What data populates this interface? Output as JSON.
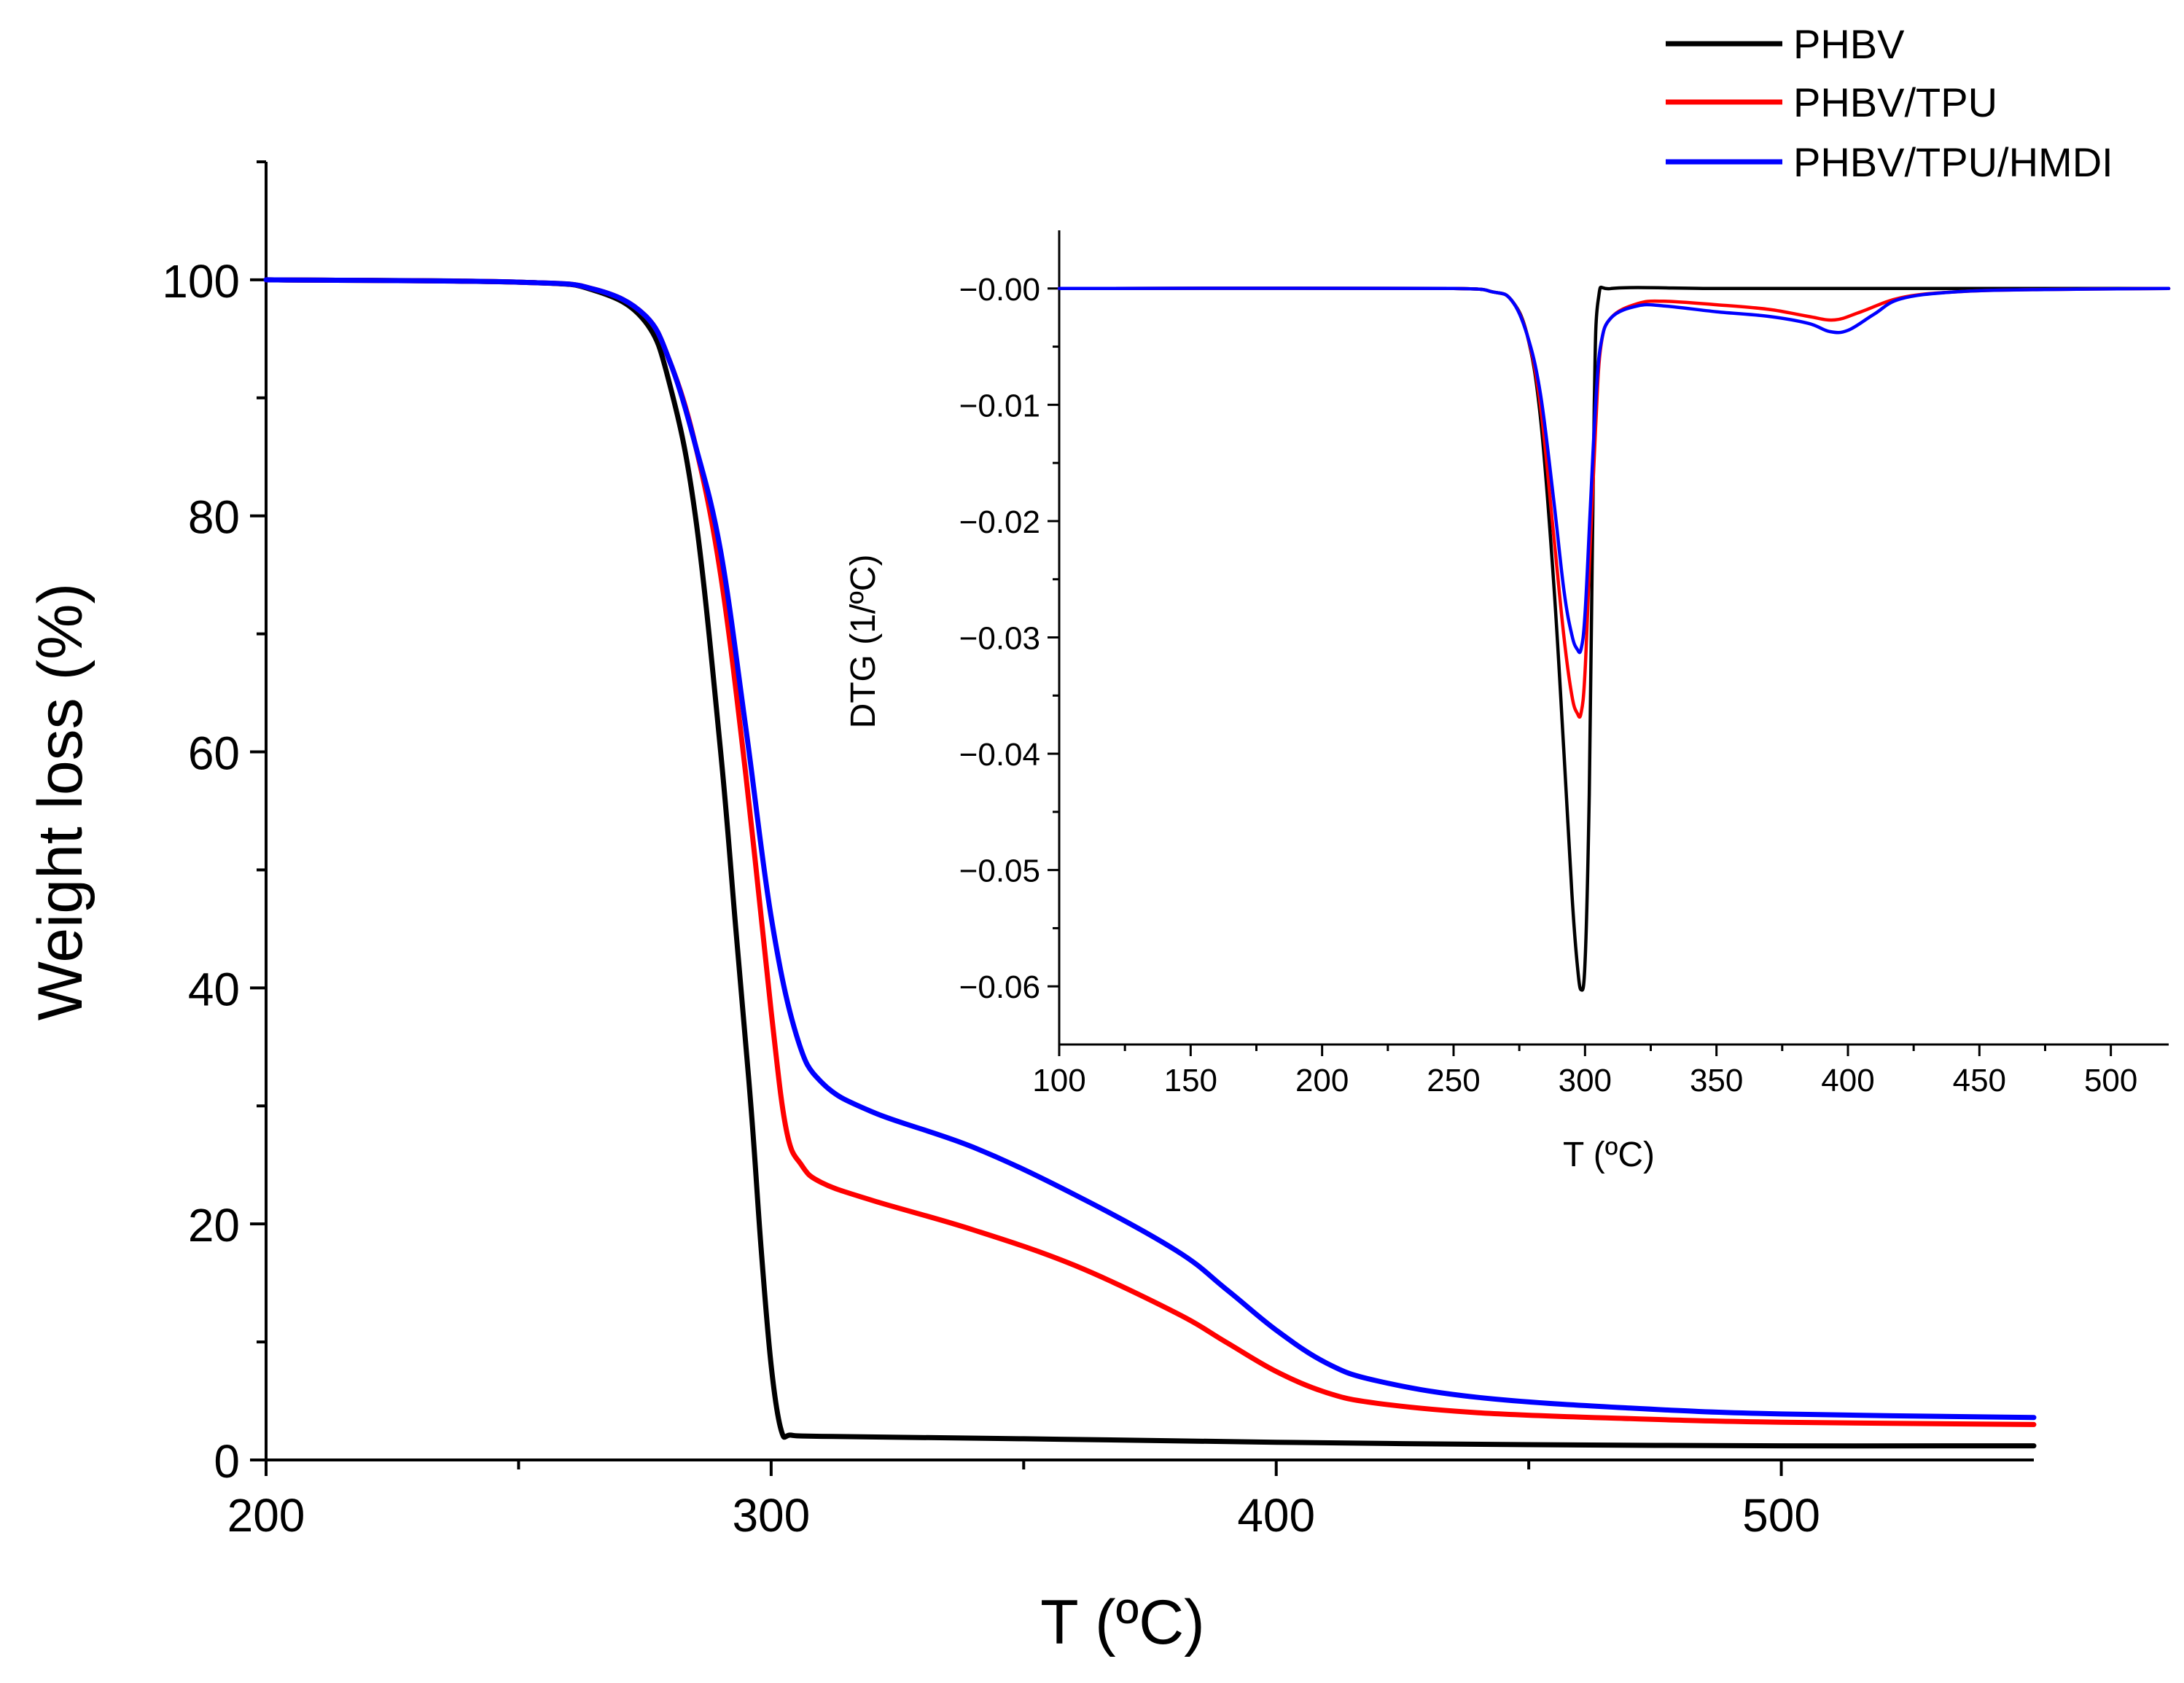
{
  "chart_data": [
    {
      "type": "line",
      "name": "tga-main",
      "xlabel": "T (ºC)",
      "ylabel": "Weight loss (%)",
      "xlim": [
        200,
        550
      ],
      "ylim": [
        0,
        110
      ],
      "xticks": [
        200,
        300,
        400,
        500
      ],
      "xminor": [
        250,
        350,
        450
      ],
      "yticks": [
        0,
        20,
        40,
        60,
        80,
        100
      ],
      "yminor": [
        10,
        30,
        50,
        70,
        90,
        110
      ],
      "series": [
        {
          "name": "PHBV",
          "color": "#000000",
          "x": [
            200,
            250,
            265,
            275,
            280,
            285,
            290,
            293,
            296,
            298,
            300,
            302,
            304,
            310,
            350,
            400,
            450,
            500,
            550
          ],
          "y": [
            100,
            99.8,
            99.1,
            96.5,
            91,
            80,
            60,
            45,
            30,
            18,
            8,
            2.5,
            2.1,
            2.0,
            1.8,
            1.5,
            1.3,
            1.2,
            1.2
          ]
        },
        {
          "name": "PHBV/TPU",
          "color": "#ff0000",
          "x": [
            200,
            250,
            265,
            275,
            280,
            285,
            290,
            295,
            300,
            303,
            306,
            310,
            320,
            340,
            360,
            380,
            390,
            400,
            410,
            420,
            440,
            470,
            500,
            550
          ],
          "y": [
            100,
            99.8,
            99.2,
            97,
            93,
            86,
            75,
            58,
            38,
            28,
            25,
            23.5,
            22,
            19.5,
            16.5,
            12.5,
            10,
            7.5,
            5.7,
            4.8,
            4.0,
            3.5,
            3.2,
            3.0
          ]
        },
        {
          "name": "PHBV/TPU/HMDI",
          "color": "#0000ff",
          "x": [
            200,
            250,
            265,
            275,
            280,
            285,
            290,
            295,
            300,
            305,
            310,
            320,
            340,
            360,
            380,
            390,
            400,
            410,
            420,
            440,
            470,
            500,
            550
          ],
          "y": [
            100,
            99.8,
            99.2,
            97,
            93,
            86,
            77,
            62,
            46,
            36,
            32,
            29.5,
            26.5,
            22.5,
            17.8,
            14.5,
            11,
            8.2,
            6.7,
            5.3,
            4.4,
            3.9,
            3.6
          ]
        }
      ]
    },
    {
      "type": "line",
      "name": "dtg-inset",
      "xlabel": "T (ºC)",
      "ylabel": "DTG (1/ºC)",
      "xlim": [
        100,
        522
      ],
      "ylim": [
        -0.065,
        0.005
      ],
      "xticks": [
        100,
        150,
        200,
        250,
        300,
        350,
        400,
        450,
        500
      ],
      "xminor": [
        125,
        175,
        225,
        275,
        325,
        375,
        425,
        475
      ],
      "yticks": [
        0.0,
        -0.01,
        -0.02,
        -0.03,
        -0.04,
        -0.05,
        -0.06
      ],
      "ytick_labels": [
        "-0.00",
        "-0.01",
        "-0.02",
        "-0.03",
        "-0.04",
        "-0.05",
        "-0.06"
      ],
      "yminor": [
        -0.005,
        -0.015,
        -0.025,
        -0.035,
        -0.045,
        -0.055
      ],
      "series": [
        {
          "name": "PHBV",
          "color": "#000000",
          "x": [
            100,
            250,
            265,
            272,
            278,
            283,
            288,
            292,
            295,
            297,
            298.5,
            300,
            301.5,
            302.5,
            303.5,
            305,
            310,
            350,
            400,
            450,
            522
          ],
          "y": [
            0,
            0,
            -0.0003,
            -0.001,
            -0.004,
            -0.011,
            -0.025,
            -0.04,
            -0.052,
            -0.058,
            -0.0603,
            -0.058,
            -0.045,
            -0.028,
            -0.01,
            -0.001,
            0,
            0,
            0,
            0,
            0
          ]
        },
        {
          "name": "PHBV/TPU",
          "color": "#ff0000",
          "x": [
            100,
            250,
            265,
            272,
            278,
            283,
            288,
            292,
            295,
            297,
            298.5,
            300,
            302,
            304,
            306,
            310,
            320,
            330,
            350,
            370,
            385,
            395,
            405,
            420,
            440,
            470,
            522
          ],
          "y": [
            0,
            0,
            -0.0003,
            -0.001,
            -0.004,
            -0.01,
            -0.021,
            -0.03,
            -0.035,
            -0.0365,
            -0.0365,
            -0.033,
            -0.022,
            -0.012,
            -0.005,
            -0.0025,
            -0.0013,
            -0.0011,
            -0.0014,
            -0.0018,
            -0.0024,
            -0.0027,
            -0.002,
            -0.0008,
            -0.0003,
            -0.0001,
            0
          ]
        },
        {
          "name": "PHBV/TPU/HMDI",
          "color": "#0000ff",
          "x": [
            100,
            250,
            265,
            272,
            278,
            283,
            288,
            292,
            295,
            297,
            298.5,
            300,
            302,
            304,
            306,
            310,
            320,
            330,
            350,
            370,
            385,
            393,
            400,
            410,
            420,
            440,
            470,
            522
          ],
          "y": [
            0,
            0,
            -0.0003,
            -0.001,
            -0.004,
            -0.009,
            -0.018,
            -0.026,
            -0.0298,
            -0.031,
            -0.031,
            -0.028,
            -0.019,
            -0.01,
            -0.0048,
            -0.0025,
            -0.0015,
            -0.0015,
            -0.002,
            -0.0024,
            -0.003,
            -0.0037,
            -0.0036,
            -0.0022,
            -0.0009,
            -0.0003,
            -0.0001,
            0
          ]
        }
      ]
    }
  ],
  "legend": {
    "placement": "top-right",
    "entries": [
      {
        "label": "PHBV",
        "color": "#000000"
      },
      {
        "label": "PHBV/TPU",
        "color": "#ff0000"
      },
      {
        "label": "PHBV/TPU/HMDI",
        "color": "#0000ff"
      }
    ]
  }
}
